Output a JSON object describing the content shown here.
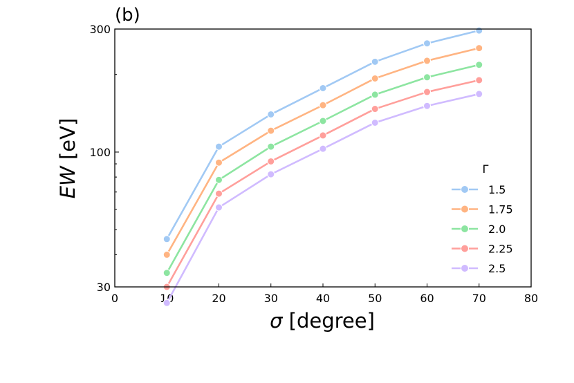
{
  "chart_data": {
    "type": "line",
    "panel_label": "(b)",
    "xlabel_symbol": "σ",
    "xlabel_rest": " [degree]",
    "ylabel_symbol": "EW",
    "ylabel_rest": " [eV]",
    "xlim": [
      0,
      80
    ],
    "ylim": [
      30,
      300
    ],
    "yscale": "log",
    "x_ticks": [
      "0",
      "10",
      "20",
      "30",
      "40",
      "50",
      "60",
      "70",
      "80"
    ],
    "y_ticks": [
      "30",
      "100",
      "300"
    ],
    "legend_title": "Γ",
    "legend_position": "lower-right",
    "x": [
      10,
      20,
      30,
      40,
      50,
      60,
      70
    ],
    "series": [
      {
        "name": "1.5",
        "color": "#a1c9f4",
        "values": [
          46,
          105,
          140,
          177,
          224,
          264,
          296
        ]
      },
      {
        "name": "1.75",
        "color": "#ffb482",
        "values": [
          40,
          91,
          121,
          152,
          193,
          226,
          253
        ]
      },
      {
        "name": "2.0",
        "color": "#8de5a1",
        "values": [
          34,
          78,
          105,
          132,
          167,
          195,
          218
        ]
      },
      {
        "name": "2.25",
        "color": "#ff9f9b",
        "values": [
          30,
          69,
          92,
          116,
          147,
          171,
          190
        ]
      },
      {
        "name": "2.5",
        "color": "#d0bbff",
        "values": [
          26,
          61,
          82,
          103,
          130,
          151,
          168
        ]
      }
    ]
  }
}
